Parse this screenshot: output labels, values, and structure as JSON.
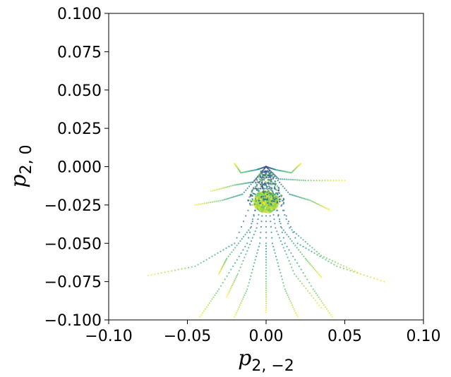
{
  "chart_data": {
    "type": "scatter",
    "title": "",
    "xlabel": {
      "base": "p",
      "subscript": "2, −2"
    },
    "ylabel": {
      "base": "p",
      "subscript": "2, 0"
    },
    "xlim": [
      -0.1,
      0.1
    ],
    "ylim": [
      -0.1,
      0.1
    ],
    "x_ticks": [
      -0.1,
      -0.05,
      0.0,
      0.05,
      0.1
    ],
    "x_tick_labels": [
      "−0.10",
      "−0.05",
      "0.00",
      "0.05",
      "0.10"
    ],
    "y_ticks": [
      0.1,
      0.075,
      0.05,
      0.025,
      0.0,
      -0.025,
      -0.05,
      -0.075,
      -0.1
    ],
    "y_tick_labels": [
      "0.100",
      "0.075",
      "0.050",
      "0.025",
      "0.000",
      "−0.025",
      "−0.050",
      "−0.075",
      "−0.100"
    ],
    "grid": false,
    "legend": "none",
    "colormap": "viridis",
    "colormap_stops": [
      "#440154",
      "#3b528b",
      "#21918c",
      "#5ec962",
      "#fde725"
    ],
    "trajectories": [
      {
        "points": [
          [
            0.0,
            0.0
          ],
          [
            -0.02,
            -0.05
          ],
          [
            -0.045,
            -0.065
          ],
          [
            -0.075,
            -0.071
          ]
        ]
      },
      {
        "points": [
          [
            0.0,
            0.0
          ],
          [
            -0.012,
            -0.05
          ],
          [
            -0.03,
            -0.08
          ],
          [
            -0.042,
            -0.098
          ]
        ]
      },
      {
        "points": [
          [
            0.0,
            0.0
          ],
          [
            -0.004,
            -0.05
          ],
          [
            -0.012,
            -0.08
          ],
          [
            -0.02,
            -0.098
          ]
        ]
      },
      {
        "points": [
          [
            0.0,
            0.0
          ],
          [
            0.0,
            -0.05
          ],
          [
            0.0,
            -0.075
          ],
          [
            0.0,
            -0.095
          ]
        ]
      },
      {
        "points": [
          [
            0.0,
            0.0
          ],
          [
            0.004,
            -0.05
          ],
          [
            0.012,
            -0.08
          ],
          [
            0.02,
            -0.098
          ]
        ]
      },
      {
        "points": [
          [
            0.0,
            0.0
          ],
          [
            0.012,
            -0.05
          ],
          [
            0.03,
            -0.08
          ],
          [
            0.042,
            -0.098
          ]
        ]
      },
      {
        "points": [
          [
            0.0,
            0.0
          ],
          [
            0.02,
            -0.05
          ],
          [
            0.045,
            -0.065
          ],
          [
            0.075,
            -0.075
          ]
        ]
      },
      {
        "points": [
          [
            0.0,
            0.0
          ],
          [
            -0.01,
            -0.04
          ],
          [
            -0.025,
            -0.06
          ],
          [
            -0.03,
            -0.07
          ]
        ]
      },
      {
        "points": [
          [
            0.0,
            0.0
          ],
          [
            0.01,
            -0.04
          ],
          [
            0.025,
            -0.06
          ],
          [
            0.035,
            -0.072
          ]
        ]
      },
      {
        "points": [
          [
            0.0,
            0.0
          ],
          [
            -0.006,
            -0.04
          ],
          [
            -0.018,
            -0.07
          ],
          [
            -0.025,
            -0.085
          ]
        ]
      },
      {
        "points": [
          [
            0.0,
            0.0
          ],
          [
            0.006,
            -0.04
          ],
          [
            0.018,
            -0.07
          ],
          [
            0.035,
            -0.092
          ]
        ]
      },
      {
        "points": [
          [
            0.0,
            0.0
          ],
          [
            0.015,
            -0.04
          ],
          [
            0.035,
            -0.058
          ],
          [
            0.06,
            -0.07
          ]
        ]
      },
      {
        "points": [
          [
            0.0,
            0.0
          ],
          [
            -0.008,
            -0.01
          ],
          [
            -0.02,
            -0.012
          ],
          [
            -0.035,
            -0.016
          ]
        ]
      },
      {
        "points": [
          [
            0.0,
            0.0
          ],
          [
            0.008,
            -0.008
          ],
          [
            0.025,
            -0.009
          ],
          [
            0.05,
            -0.009
          ]
        ]
      },
      {
        "points": [
          [
            0.0,
            0.0
          ],
          [
            -0.006,
            -0.002
          ],
          [
            -0.016,
            -0.004
          ],
          [
            -0.02,
            0.002
          ]
        ]
      },
      {
        "points": [
          [
            0.0,
            0.0
          ],
          [
            0.006,
            -0.002
          ],
          [
            0.016,
            -0.004
          ],
          [
            0.022,
            0.002
          ]
        ]
      },
      {
        "points": [
          [
            0.0,
            0.0
          ],
          [
            -0.015,
            -0.018
          ],
          [
            -0.028,
            -0.022
          ],
          [
            -0.045,
            -0.025
          ]
        ]
      },
      {
        "points": [
          [
            0.0,
            0.0
          ],
          [
            0.015,
            -0.018
          ],
          [
            0.028,
            -0.022
          ],
          [
            0.04,
            -0.028
          ]
        ]
      }
    ],
    "dense_cluster": {
      "center": [
        0.0,
        -0.023
      ],
      "spread": [
        0.008,
        0.007
      ],
      "color_range": [
        0.75,
        1.0
      ]
    }
  }
}
